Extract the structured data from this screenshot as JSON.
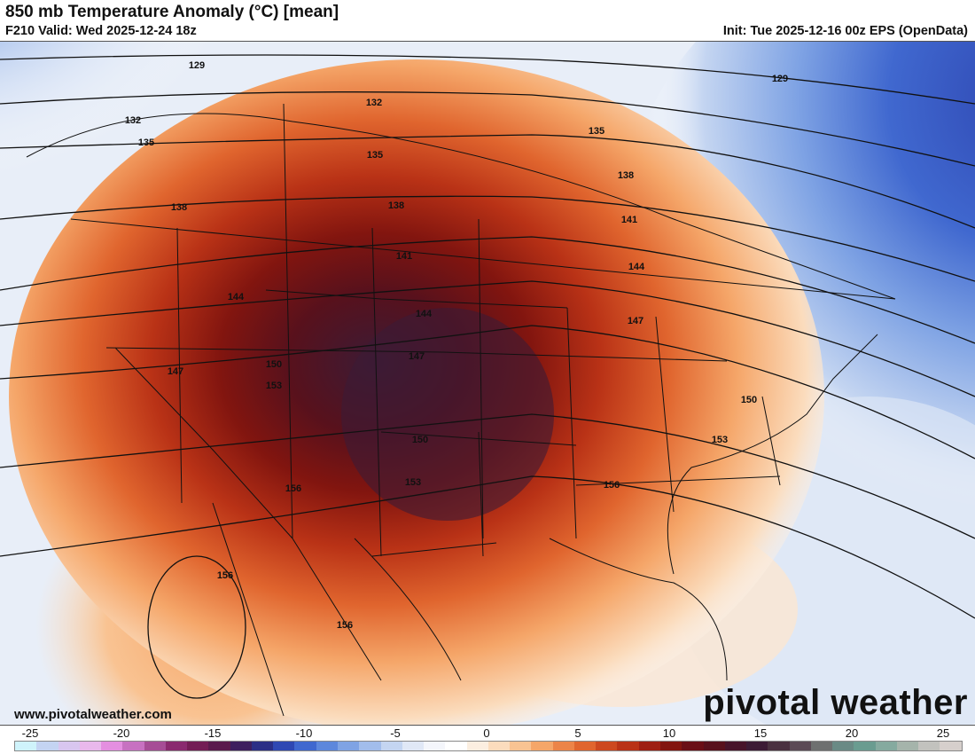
{
  "header": {
    "title": "850 mb Temperature Anomaly (°C) [mean]",
    "valid": "F210 Valid: Wed 2025-12-24 18z",
    "init": "Init: Tue 2025-12-16 00z EPS (OpenData)"
  },
  "footer": {
    "website": "www.pivotalweather.com",
    "brand": "pivotal weather"
  },
  "colorbar": {
    "labels": [
      "-25",
      "-20",
      "-15",
      "-10",
      "-5",
      "0",
      "5",
      "10",
      "15",
      "20",
      "25"
    ],
    "colors": [
      "#cff3fb",
      "#c4d4f2",
      "#d8c6ef",
      "#e9b8ec",
      "#e48fe0",
      "#c771c1",
      "#a64d96",
      "#8a2a6f",
      "#731d55",
      "#5a1a4d",
      "#3d1f5e",
      "#2b2f86",
      "#2f48b3",
      "#4068cf",
      "#5d87dc",
      "#7fa3e4",
      "#a2bdeb",
      "#c4d5f1",
      "#e0e8f6",
      "#f4f6fb",
      "#ffffff",
      "#fbeee0",
      "#fbdcbd",
      "#f9c392",
      "#f5a669",
      "#ec8448",
      "#e0652e",
      "#cd481f",
      "#b93216",
      "#9e1f12",
      "#82150f",
      "#6a0f16",
      "#58111c",
      "#47142a",
      "#3c1b35",
      "#4a3140",
      "#5b4a55",
      "#6e7070",
      "#6a8a85",
      "#6a9c90",
      "#85aa9f",
      "#a5b4ab",
      "#c2c2be",
      "#d6cfcc"
    ]
  },
  "contours": [
    "129",
    "132",
    "135",
    "138",
    "141",
    "144",
    "147",
    "150",
    "153",
    "156"
  ]
}
